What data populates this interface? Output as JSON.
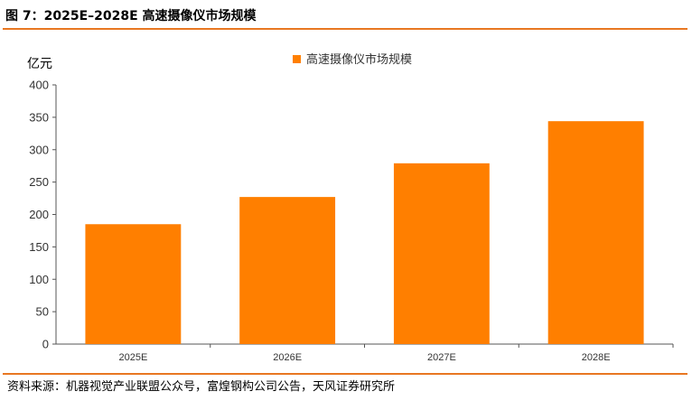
{
  "figure": {
    "title": "图 7：2025E–2028E 高速摄像仪市场规模",
    "source": "资料来源：机器视觉产业联盟公众号，富煌钢构公司公告，天风证券研究所"
  },
  "colors": {
    "accent": "#E87722",
    "bar": "#FF7F00"
  },
  "chart_data": {
    "type": "bar",
    "categories": [
      "2025E",
      "2026E",
      "2027E",
      "2028E"
    ],
    "series": [
      {
        "name": "高速摄像仪市场规模",
        "values": [
          185,
          227,
          279,
          344
        ]
      }
    ],
    "ylabel": "亿元",
    "ylim": [
      0,
      400
    ],
    "yticks": [
      0,
      50,
      100,
      150,
      200,
      250,
      300,
      350,
      400
    ],
    "grid": false,
    "legend": "top-center"
  }
}
